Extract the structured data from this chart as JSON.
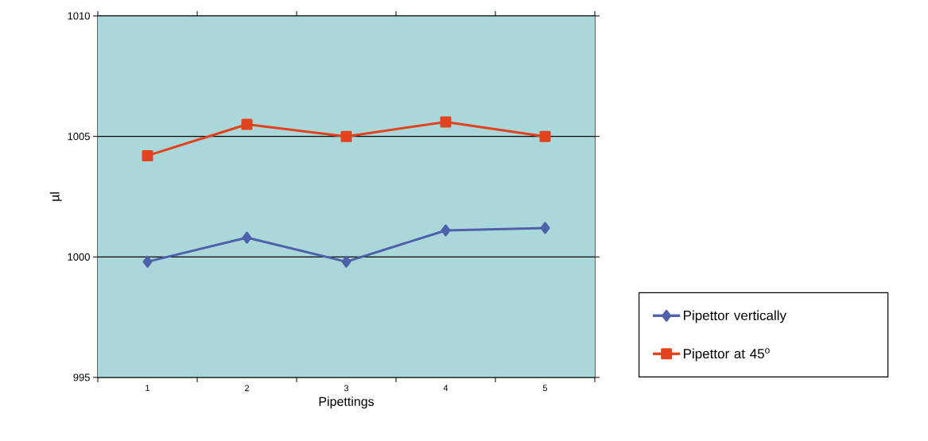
{
  "chart_data": {
    "type": "line",
    "xlabel": "Pipettings",
    "ylabel": "µl",
    "categories": [
      "1",
      "2",
      "3",
      "4",
      "5"
    ],
    "series": [
      {
        "name": "Pipettor vertically",
        "color": "#4f61aa",
        "marker": "diamond",
        "values": [
          999.8,
          1000.8,
          999.8,
          1001.1,
          1001.2
        ]
      },
      {
        "name": "Pipettor at 45$^{o}$",
        "color": "#e2431e",
        "marker": "square",
        "values": [
          1004.2,
          1005.5,
          1005.0,
          1005.6,
          1005.0
        ]
      }
    ],
    "ylim": [
      995,
      1010
    ],
    "yticks": [
      995,
      1000,
      1005,
      1010
    ],
    "grid": "y",
    "legend": "right",
    "line_style": "solid"
  }
}
